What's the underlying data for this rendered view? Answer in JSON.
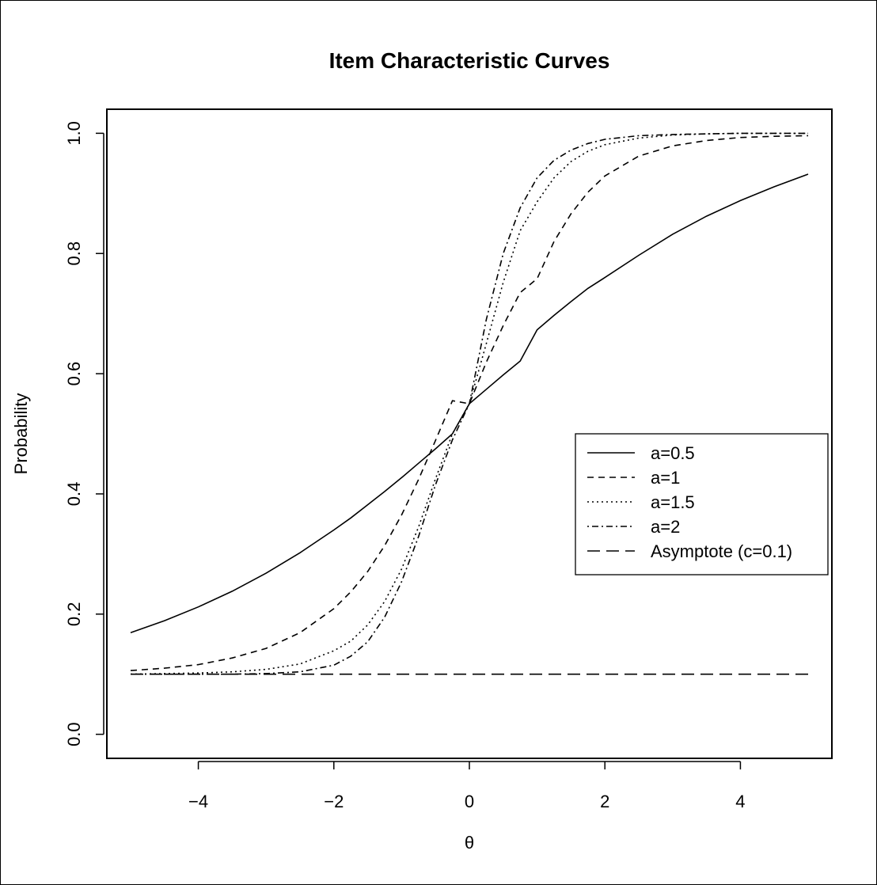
{
  "chart_data": {
    "type": "line",
    "title": "Item Characteristic Curves",
    "xlabel": "θ",
    "ylabel": "Probability",
    "xlim": [
      -5.35,
      5.35
    ],
    "ylim": [
      -0.04,
      1.04
    ],
    "xticks": [
      -4,
      -2,
      0,
      2,
      4
    ],
    "xtick_labels": [
      "−4",
      "−2",
      "0",
      "2",
      "4"
    ],
    "yticks": [
      0.0,
      0.2,
      0.4,
      0.6,
      0.8,
      1.0
    ],
    "ytick_labels": [
      "0.0",
      "0.2",
      "0.4",
      "0.6",
      "0.8",
      "1.0"
    ],
    "x": [
      -5,
      -4.5,
      -4,
      -3.5,
      -3,
      -2.5,
      -2,
      -1.75,
      -1.5,
      -1.25,
      -1,
      -0.75,
      -0.5,
      -0.25,
      0,
      0.25,
      0.5,
      0.75,
      1,
      1.25,
      1.5,
      1.75,
      2,
      2.5,
      3,
      3.5,
      4,
      4.5,
      5
    ],
    "series": [
      {
        "name": "a=0.5",
        "dash": "solid",
        "values": [
          0.169,
          0.189,
          0.212,
          0.238,
          0.268,
          0.302,
          0.34,
          0.36,
          0.382,
          0.404,
          0.427,
          0.451,
          0.475,
          0.5,
          0.55,
          0.574,
          0.598,
          0.621,
          0.673,
          0.697,
          0.72,
          0.742,
          0.76,
          0.797,
          0.832,
          0.862,
          0.888,
          0.911,
          0.932
        ]
      },
      {
        "name": "a=1",
        "dash": "dashed",
        "values": [
          0.106,
          0.11,
          0.116,
          0.127,
          0.143,
          0.169,
          0.209,
          0.237,
          0.271,
          0.314,
          0.365,
          0.424,
          0.489,
          0.555,
          0.55,
          0.619,
          0.68,
          0.735,
          0.758,
          0.82,
          0.866,
          0.902,
          0.929,
          0.962,
          0.979,
          0.988,
          0.993,
          0.995,
          0.996
        ]
      },
      {
        "name": "a=1.5",
        "dash": "dotted",
        "values": [
          0.1,
          0.101,
          0.102,
          0.104,
          0.108,
          0.117,
          0.139,
          0.155,
          0.182,
          0.221,
          0.275,
          0.345,
          0.425,
          0.5,
          0.55,
          0.65,
          0.752,
          0.838,
          0.886,
          0.926,
          0.953,
          0.97,
          0.981,
          0.992,
          0.997,
          0.999,
          1.0,
          1.0,
          1.0
        ]
      },
      {
        "name": "a=2",
        "dash": "dotdash",
        "values": [
          0.1,
          0.1,
          0.1,
          0.1,
          0.101,
          0.104,
          0.115,
          0.13,
          0.154,
          0.195,
          0.254,
          0.329,
          0.415,
          0.49,
          0.55,
          0.69,
          0.8,
          0.876,
          0.926,
          0.955,
          0.972,
          0.983,
          0.99,
          0.996,
          0.998,
          0.999,
          1.0,
          1.0,
          1.0
        ]
      },
      {
        "name": "Asymptote (c=0.1)",
        "dash": "longdash",
        "values": [
          0.1,
          0.1,
          0.1,
          0.1,
          0.1,
          0.1,
          0.1,
          0.1,
          0.1,
          0.1,
          0.1,
          0.1,
          0.1,
          0.1,
          0.1,
          0.1,
          0.1,
          0.1,
          0.1,
          0.1,
          0.1,
          0.1,
          0.1,
          0.1,
          0.1,
          0.1,
          0.1,
          0.1,
          0.1
        ]
      }
    ],
    "legend_position": "right",
    "grid": false
  }
}
